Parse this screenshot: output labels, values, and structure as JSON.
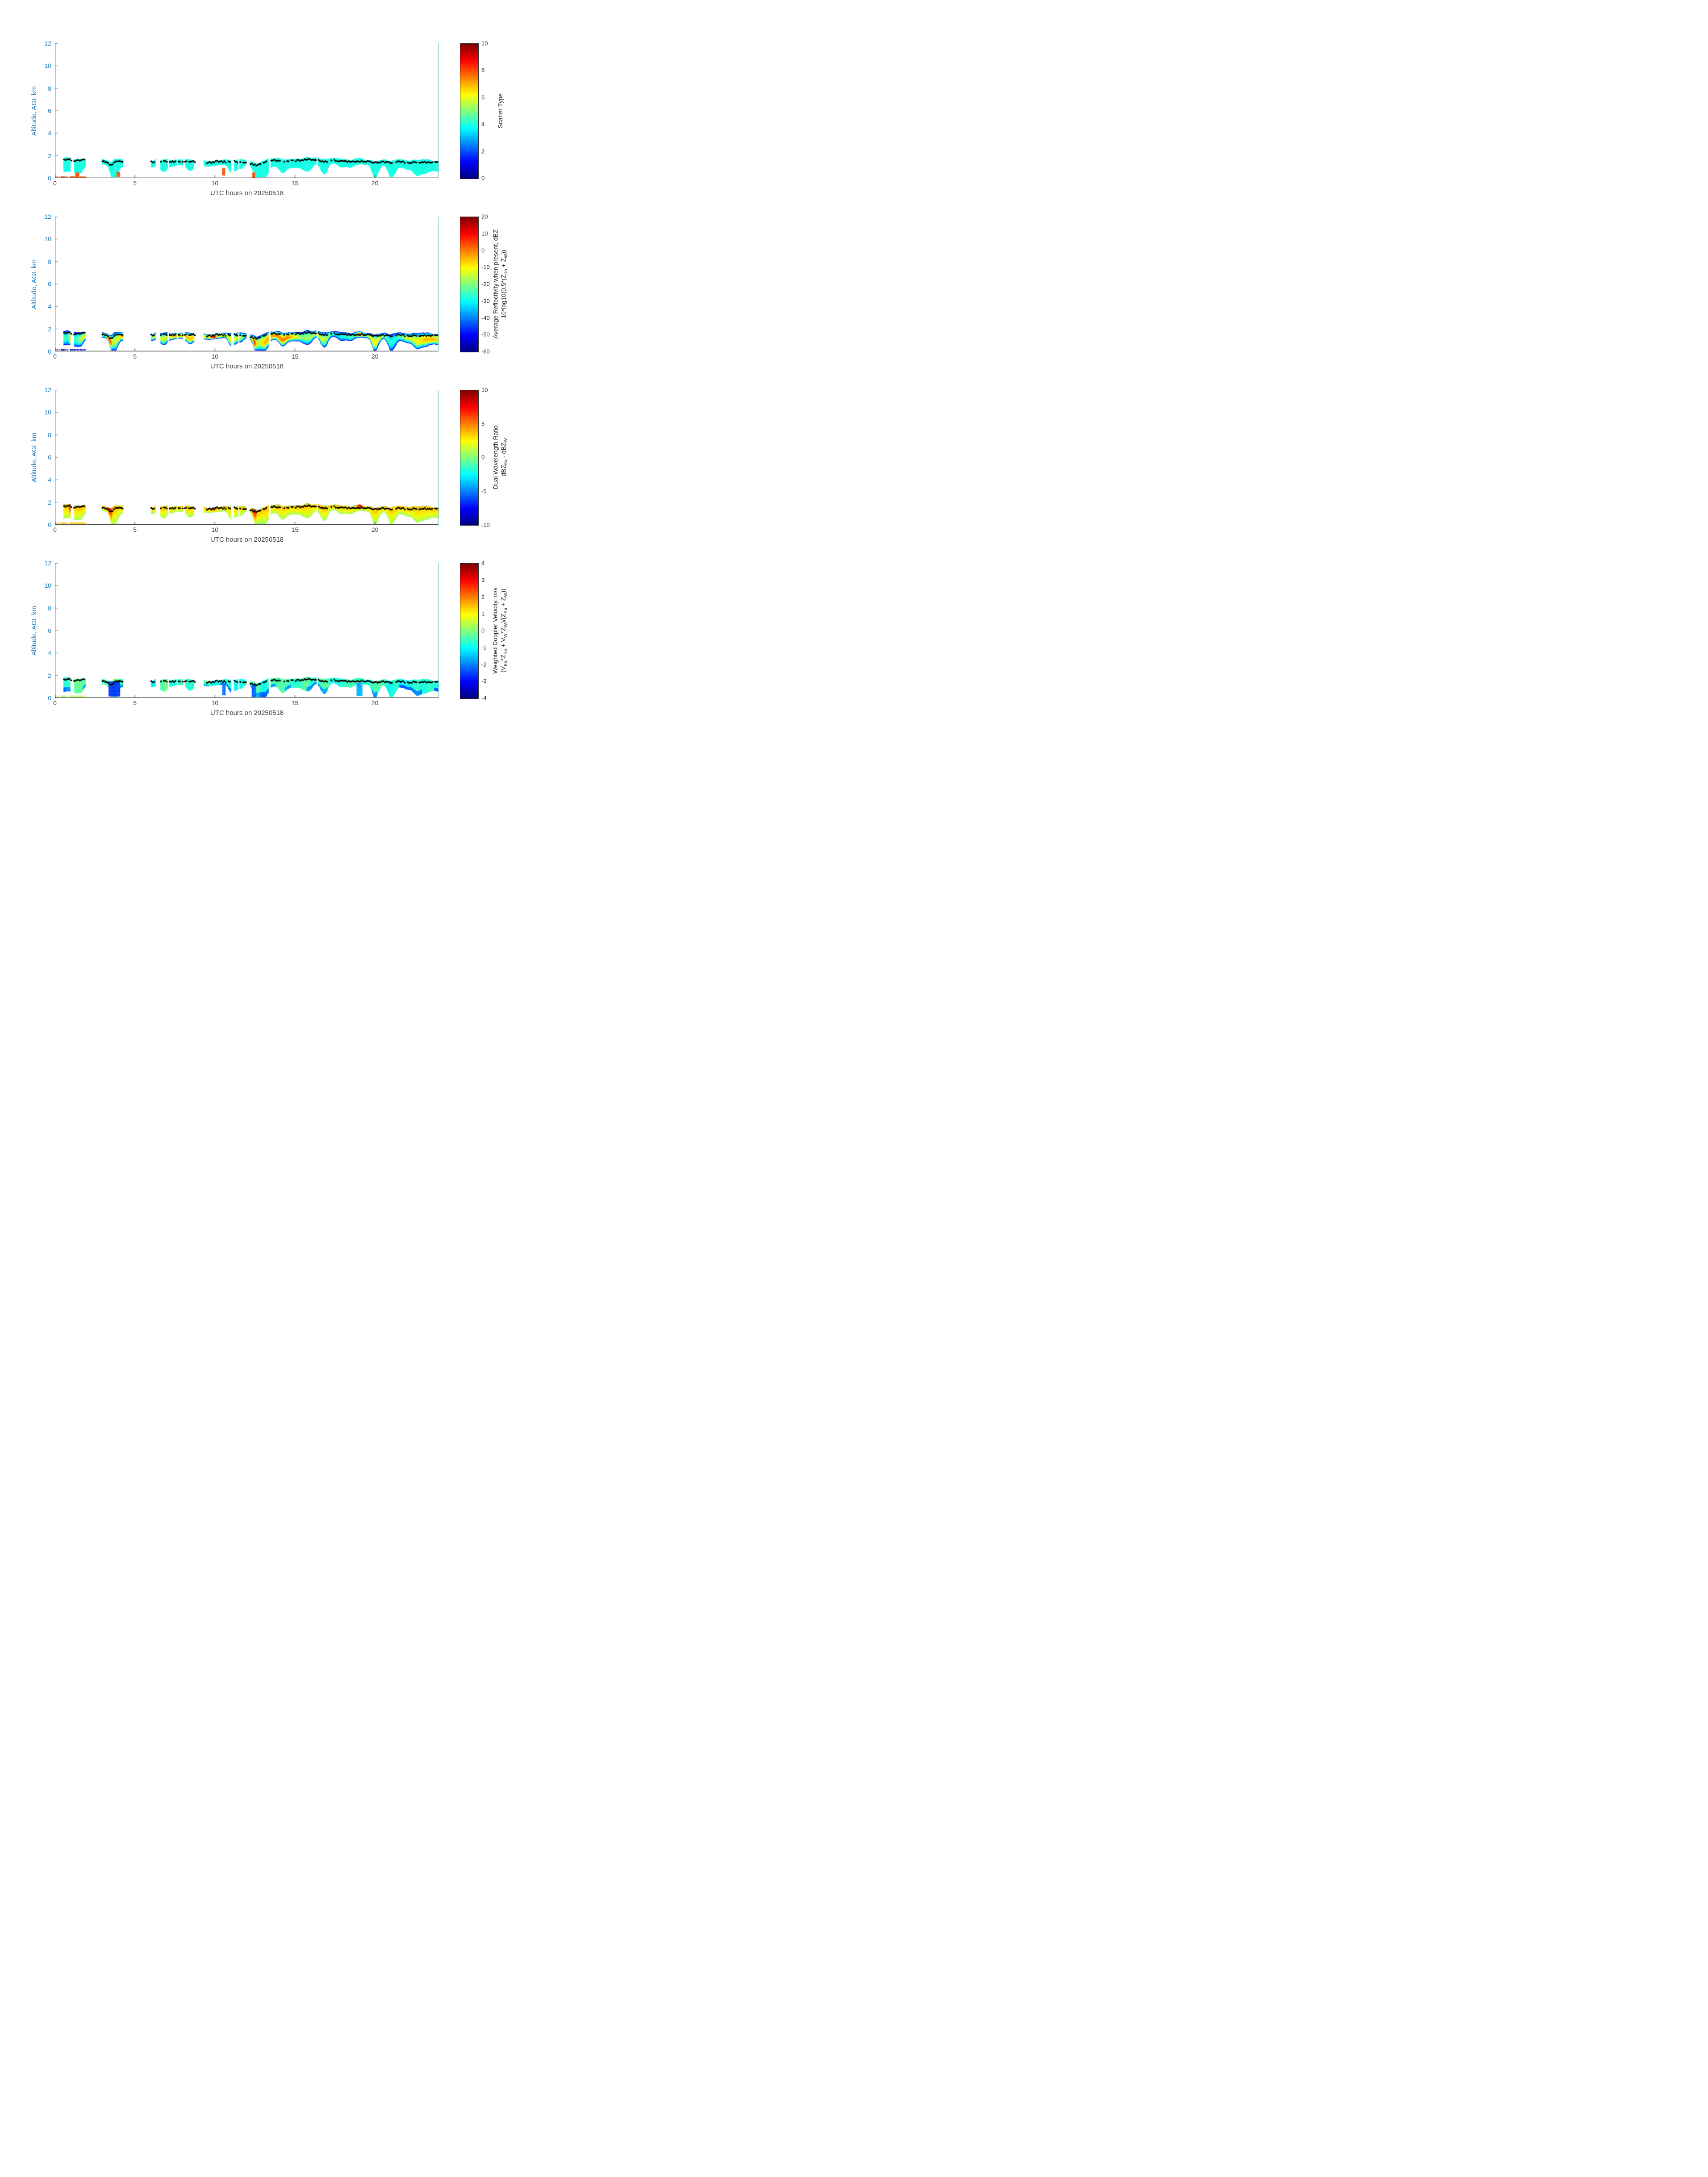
{
  "chart_data": {
    "type": "heatmap",
    "description": "Four stacked time-height cloud radar quicklook panels sharing a common x axis",
    "x": {
      "label": "UTC hours on 20250518",
      "range": [
        0,
        24
      ],
      "ticks": [
        0,
        5,
        10,
        15,
        20
      ]
    },
    "y": {
      "label": "Altitude, AGL km",
      "range": [
        0,
        12
      ],
      "ticks": [
        0,
        2,
        4,
        6,
        8,
        10,
        12
      ]
    },
    "colormap": "jet",
    "colors": {
      "axis_blue": "#1777b9",
      "text_dark": "#262626",
      "cloud_turquoise": "#1affe6",
      "plot_right_edge": "#93d6cd",
      "dot_black": "#000000"
    },
    "cloud_segments": [
      {
        "t0": 0.55,
        "t1": 1.9,
        "deep": 1.0,
        "gap": 0.06
      },
      {
        "t0": 2.95,
        "t1": 4.25,
        "deep": 1.1,
        "gap": 0.04
      },
      {
        "t0": 6.0,
        "t1": 6.3,
        "deep": 0.5,
        "gap": 0.3
      },
      {
        "t0": 6.6,
        "t1": 7.05,
        "deep": 0.7,
        "gap": 0.15
      },
      {
        "t0": 7.15,
        "t1": 7.6,
        "deep": 0.7,
        "gap": 0.15
      },
      {
        "t0": 7.7,
        "t1": 8.05,
        "deep": 0.6,
        "gap": 0.2
      },
      {
        "t0": 8.1,
        "t1": 8.75,
        "deep": 0.7,
        "gap": 0.12
      },
      {
        "t0": 9.3,
        "t1": 11.0,
        "deep": 1.1,
        "gap": 0.05
      },
      {
        "t0": 11.2,
        "t1": 11.95,
        "deep": 0.8,
        "gap": 0.1
      },
      {
        "t0": 12.2,
        "t1": 13.35,
        "deep": 1.2,
        "gap": 0.05
      },
      {
        "t0": 13.5,
        "t1": 16.35,
        "deep": 1.0,
        "gap": 0.05
      },
      {
        "t0": 16.45,
        "t1": 24.0,
        "deep": 0.9,
        "gap": 0.03
      }
    ],
    "core_events": [
      [
        0.85,
        1.15
      ],
      [
        3.2,
        3.65
      ],
      [
        9.7,
        10.15
      ],
      [
        12.3,
        12.65
      ],
      [
        18.85,
        19.25
      ]
    ],
    "cloud_top_track": [
      [
        0.55,
        1.62
      ],
      [
        0.8,
        1.68
      ],
      [
        1.05,
        1.6
      ],
      [
        1.3,
        1.55
      ],
      [
        1.6,
        1.6
      ],
      [
        1.9,
        1.63
      ],
      [
        2.95,
        1.55
      ],
      [
        3.15,
        1.45
      ],
      [
        3.35,
        1.28
      ],
      [
        3.55,
        1.18
      ],
      [
        3.75,
        1.5
      ],
      [
        4.0,
        1.55
      ],
      [
        4.25,
        1.5
      ],
      [
        6.0,
        1.45
      ],
      [
        6.3,
        1.42
      ],
      [
        6.65,
        1.45
      ],
      [
        7.0,
        1.5
      ],
      [
        7.35,
        1.46
      ],
      [
        7.7,
        1.5
      ],
      [
        8.1,
        1.46
      ],
      [
        8.45,
        1.5
      ],
      [
        8.75,
        1.46
      ],
      [
        9.3,
        1.42
      ],
      [
        9.6,
        1.36
      ],
      [
        9.9,
        1.44
      ],
      [
        10.2,
        1.5
      ],
      [
        10.55,
        1.46
      ],
      [
        10.9,
        1.42
      ],
      [
        11.2,
        1.48
      ],
      [
        11.6,
        1.44
      ],
      [
        11.95,
        1.4
      ],
      [
        12.2,
        1.34
      ],
      [
        12.45,
        1.18
      ],
      [
        12.65,
        1.1
      ],
      [
        12.85,
        1.26
      ],
      [
        13.1,
        1.4
      ],
      [
        13.35,
        1.5
      ],
      [
        13.55,
        1.6
      ],
      [
        14.0,
        1.56
      ],
      [
        14.5,
        1.5
      ],
      [
        15.0,
        1.56
      ],
      [
        15.5,
        1.62
      ],
      [
        15.9,
        1.66
      ],
      [
        16.35,
        1.6
      ],
      [
        16.5,
        1.56
      ],
      [
        17.0,
        1.5
      ],
      [
        17.5,
        1.56
      ],
      [
        18.0,
        1.5
      ],
      [
        18.5,
        1.46
      ],
      [
        19.0,
        1.52
      ],
      [
        19.5,
        1.46
      ],
      [
        20.0,
        1.4
      ],
      [
        20.5,
        1.46
      ],
      [
        21.0,
        1.4
      ],
      [
        21.5,
        1.44
      ],
      [
        22.0,
        1.38
      ],
      [
        22.5,
        1.42
      ],
      [
        23.0,
        1.44
      ],
      [
        23.5,
        1.38
      ],
      [
        24.0,
        1.4
      ]
    ],
    "panels": [
      {
        "name": "scatter_type",
        "label_lines": [
          "Scatter Type"
        ],
        "colorbar": {
          "min": 0,
          "max": 10,
          "ticks": [
            10,
            8,
            6,
            4,
            2,
            0
          ]
        },
        "dominant_value": 4,
        "features": [
          [
            0.05,
            0.8,
            0.03,
            0.14,
            8,
            1
          ],
          [
            0.9,
            1.95,
            0.03,
            0.14,
            8,
            1
          ],
          [
            1.28,
            1.5,
            0.15,
            0.5,
            8,
            0
          ],
          [
            3.85,
            4.05,
            0.12,
            0.55,
            8,
            0
          ],
          [
            10.45,
            10.62,
            0.25,
            0.85,
            8,
            0
          ],
          [
            12.33,
            12.5,
            0.05,
            0.5,
            8,
            0
          ]
        ]
      },
      {
        "name": "reflectivity",
        "label_lines": [
          "Average Reflectivity when present, dBZ",
          "10*log10(0.5*(Z_Ka + Z_W))"
        ],
        "colorbar": {
          "min": -60,
          "max": 20,
          "ticks": [
            20,
            10,
            0,
            -10,
            -20,
            -30,
            -40,
            -50,
            -60
          ]
        },
        "typical_range_dbz": [
          -50,
          5
        ],
        "features": [
          [
            0.05,
            0.8,
            0.1,
            0.2,
            -55,
            1
          ],
          [
            0.9,
            1.95,
            0.1,
            0.2,
            -55,
            1
          ]
        ]
      },
      {
        "name": "dwr",
        "label_lines": [
          "Dual Wavelength Ratio",
          "dBZ_Ka - dBZ_W"
        ],
        "colorbar": {
          "min": -10,
          "max": 10,
          "ticks": [
            10,
            5,
            0,
            -5,
            -10
          ]
        },
        "typical_range_db": [
          0,
          5
        ],
        "features": [
          [
            0.05,
            0.8,
            0.08,
            0.2,
            3.5,
            1
          ],
          [
            0.9,
            1.95,
            0.08,
            0.2,
            3.5,
            1
          ]
        ]
      },
      {
        "name": "velocity",
        "label_lines": [
          "Weighted Doppler Velocity, m/s",
          "(V_Ka*Z_Ka + V_W*Z_W)/(Z_Ka + Z_W))"
        ],
        "colorbar": {
          "min": -4,
          "max": 4,
          "ticks": [
            4,
            3,
            2,
            1,
            0,
            -1,
            -2,
            -3,
            -4
          ]
        },
        "typical_range_ms": [
          -2,
          0.5
        ],
        "features": [
          [
            0.05,
            0.8,
            0.08,
            0.2,
            0.4,
            1
          ],
          [
            0.9,
            1.95,
            0.08,
            0.2,
            0.4,
            1
          ],
          [
            3.35,
            4.05,
            0.15,
            1.45,
            -2.6,
            0
          ],
          [
            10.45,
            10.65,
            0.25,
            1.3,
            -2.0,
            0
          ],
          [
            12.3,
            12.55,
            0.1,
            1.2,
            -2.2,
            0
          ],
          [
            18.85,
            19.2,
            0.2,
            1.35,
            -1.6,
            0
          ]
        ]
      }
    ]
  }
}
